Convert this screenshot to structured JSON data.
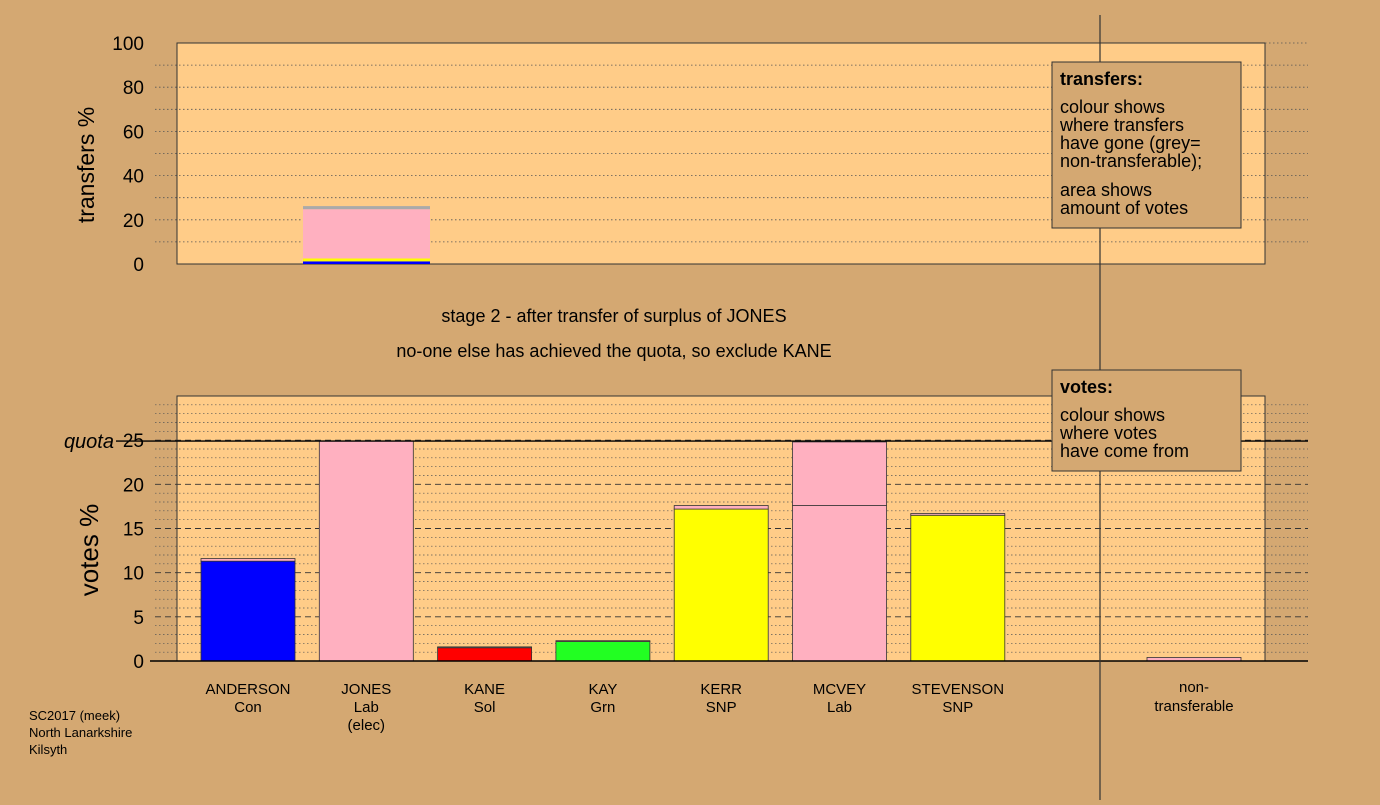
{
  "colors": {
    "background": "#D4A872",
    "panel": "#FFCC88",
    "grid": "#555555",
    "Con": "#0000FF",
    "Lab": "#FFB0C0",
    "Sol": "#FF0000",
    "Grn": "#22FF22",
    "SNP": "#FFFF00",
    "nontransferable": "#AAAAAA"
  },
  "captions": {
    "stage": "stage 2 - after transfer of surplus of JONES",
    "action": "no-one else has achieved the quota, so exclude KANE",
    "quota_label": "quota",
    "footer": [
      "SC2017 (meek)",
      "North Lanarkshire",
      "Kilsyth"
    ]
  },
  "legends": {
    "transfers": {
      "title": "transfers:",
      "lines_a": [
        "colour shows",
        "where transfers",
        "have gone (grey=",
        "non-transferable);"
      ],
      "lines_b": [
        "area shows",
        "amount of votes"
      ]
    },
    "votes": {
      "title": "votes:",
      "lines": [
        "colour shows",
        "where votes",
        "have come from"
      ]
    }
  },
  "chart_data": [
    {
      "type": "bar",
      "title": "",
      "ylabel": "transfers %",
      "ylim": [
        0,
        100
      ],
      "yticks": [
        0,
        20,
        40,
        60,
        80,
        100
      ],
      "bars": [
        {
          "candidate": "JONES",
          "segments": [
            {
              "party": "Con",
              "value": 1.2
            },
            {
              "party": "SNP",
              "value": 1.3
            },
            {
              "party": "Lab",
              "value": 22.3
            },
            {
              "party": "nontransferable",
              "value": 1.4
            }
          ]
        }
      ]
    },
    {
      "type": "bar",
      "title": "",
      "ylabel": "votes %",
      "ylim": [
        0,
        30
      ],
      "yticks": [
        0,
        5,
        10,
        15,
        20,
        25
      ],
      "quota": 24.9,
      "categories": [
        {
          "name": "ANDERSON",
          "party": "Con",
          "note": "",
          "segments": [
            {
              "party": "Con",
              "value": 11.3
            },
            {
              "party": "Lab",
              "value": 0.3
            }
          ]
        },
        {
          "name": "JONES",
          "party": "Lab",
          "note": "(elec)",
          "segments": [
            {
              "party": "Lab",
              "value": 24.9
            }
          ]
        },
        {
          "name": "KANE",
          "party": "Sol",
          "note": "",
          "segments": [
            {
              "party": "Sol",
              "value": 1.5
            },
            {
              "party": "Lab",
              "value": 0.1
            }
          ]
        },
        {
          "name": "KAY",
          "party": "Grn",
          "note": "",
          "segments": [
            {
              "party": "Grn",
              "value": 2.2
            },
            {
              "party": "Lab",
              "value": 0.1
            }
          ]
        },
        {
          "name": "KERR",
          "party": "SNP",
          "note": "",
          "segments": [
            {
              "party": "SNP",
              "value": 17.2
            },
            {
              "party": "Lab",
              "value": 0.4
            }
          ]
        },
        {
          "name": "MCVEY",
          "party": "Lab",
          "note": "",
          "segments": [
            {
              "party": "Lab",
              "value": 17.6
            },
            {
              "party": "Lab",
              "value": 7.2
            }
          ]
        },
        {
          "name": "STEVENSON",
          "party": "SNP",
          "note": "",
          "segments": [
            {
              "party": "SNP",
              "value": 16.5
            },
            {
              "party": "Lab",
              "value": 0.2
            }
          ]
        }
      ],
      "nontransferable": {
        "label_lines": [
          "non-",
          "transferable"
        ],
        "segments": [
          {
            "party": "Lab",
            "value": 0.4
          }
        ]
      }
    }
  ]
}
